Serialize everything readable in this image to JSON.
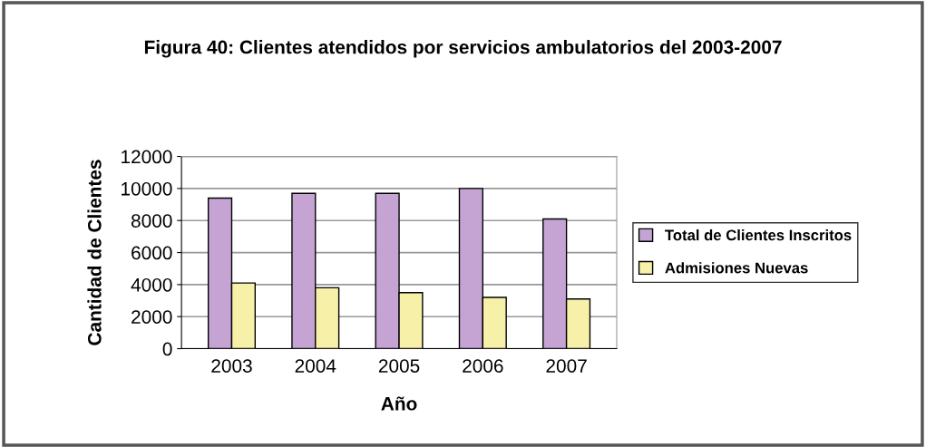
{
  "chart_data": {
    "type": "bar",
    "title": "Figura 40: Clientes atendidos por servicios ambulatorios del 2003-2007",
    "xlabel": "Año",
    "ylabel": "Cantidad de Clientes",
    "categories": [
      "2003",
      "2004",
      "2005",
      "2006",
      "2007"
    ],
    "series": [
      {
        "name": "Total de Clientes Inscritos",
        "color": "#c5a3d3",
        "values": [
          9400,
          9700,
          9700,
          10000,
          8100
        ]
      },
      {
        "name": "Admisiones Nuevas",
        "color": "#f7f0a8",
        "values": [
          4100,
          3800,
          3500,
          3200,
          3100
        ]
      }
    ],
    "ylim": [
      0,
      12000
    ],
    "yticks": [
      0,
      2000,
      4000,
      6000,
      8000,
      10000,
      12000
    ],
    "grid": "y",
    "legend": "right"
  }
}
